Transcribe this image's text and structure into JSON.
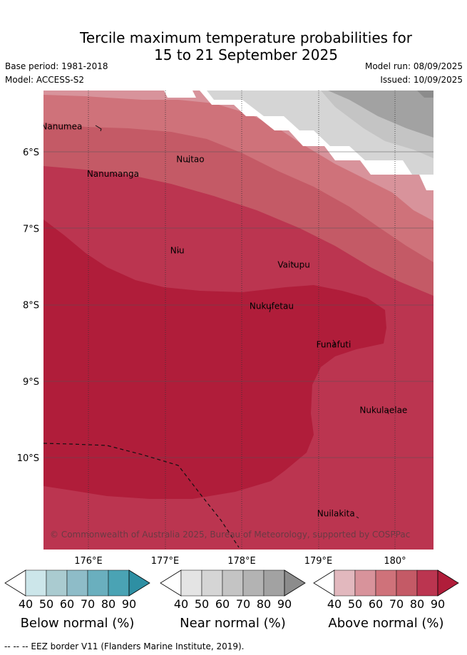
{
  "title_line1": "Tercile maximum temperature probabilities for",
  "title_line2": "15 to 21 September 2025",
  "base_period": "Base period: 1981-2018",
  "model": "Model: ACCESS-S2",
  "model_run": "Model run: 08/09/2025",
  "issued": "Issued: 10/09/2025",
  "copyright": "© Commonwealth of Australia 2025, Bureau of Meteorology, supported by COSPPac",
  "lat_labels": [
    {
      "label": "6°S",
      "lat": -6
    },
    {
      "label": "7°S",
      "lat": -7
    },
    {
      "label": "8°S",
      "lat": -8
    },
    {
      "label": "9°S",
      "lat": -9
    },
    {
      "label": "10°S",
      "lat": -10
    }
  ],
  "lon_labels": [
    {
      "label": "176°E",
      "lon": 176
    },
    {
      "label": "177°E",
      "lon": 177
    },
    {
      "label": "178°E",
      "lon": 178
    },
    {
      "label": "179°E",
      "lon": 179
    },
    {
      "label": "180°",
      "lon": 180
    }
  ],
  "places": [
    {
      "name": "Nanumea",
      "lon": 175.65,
      "lat": -5.67
    },
    {
      "name": "Nuitao",
      "lon": 177.33,
      "lat": -6.1
    },
    {
      "name": "Nanumanga",
      "lon": 176.32,
      "lat": -6.29
    },
    {
      "name": "Niu",
      "lon": 177.16,
      "lat": -7.29
    },
    {
      "name": "Vaitupu",
      "lon": 178.68,
      "lat": -7.48
    },
    {
      "name": "Nukufetau",
      "lon": 178.39,
      "lat": -8.02
    },
    {
      "name": "Funafuti",
      "lon": 179.2,
      "lat": -8.52
    },
    {
      "name": "Nukulaelae",
      "lon": 179.85,
      "lat": -9.38
    },
    {
      "name": "Nuilakita",
      "lon": 179.23,
      "lat": -10.73
    }
  ],
  "colorbars": [
    {
      "title": "Below normal (%)",
      "ticks": [
        "40",
        "50",
        "60",
        "70",
        "80",
        "90"
      ],
      "colors": [
        "#ffffff",
        "#cce6ea",
        "#aacbd0",
        "#8ebcc8",
        "#6aafbe",
        "#4aa3b4",
        "#2e8fa3"
      ]
    },
    {
      "title": "Near normal (%)",
      "ticks": [
        "40",
        "50",
        "60",
        "70",
        "80",
        "90"
      ],
      "colors": [
        "#ffffff",
        "#e4e4e4",
        "#d5d5d5",
        "#c4c4c4",
        "#b3b3b3",
        "#a2a2a2",
        "#8c8c8c"
      ]
    },
    {
      "title": "Above normal (%)",
      "ticks": [
        "40",
        "50",
        "60",
        "70",
        "80",
        "90"
      ],
      "colors": [
        "#ffffff",
        "#e2b8be",
        "#d8939b",
        "#cf727a",
        "#c45a66",
        "#bb3550",
        "#b01d3a"
      ]
    }
  ],
  "footnote": "--  --  -- EEZ border V11 (Flanders Marine Institute, 2019)."
}
